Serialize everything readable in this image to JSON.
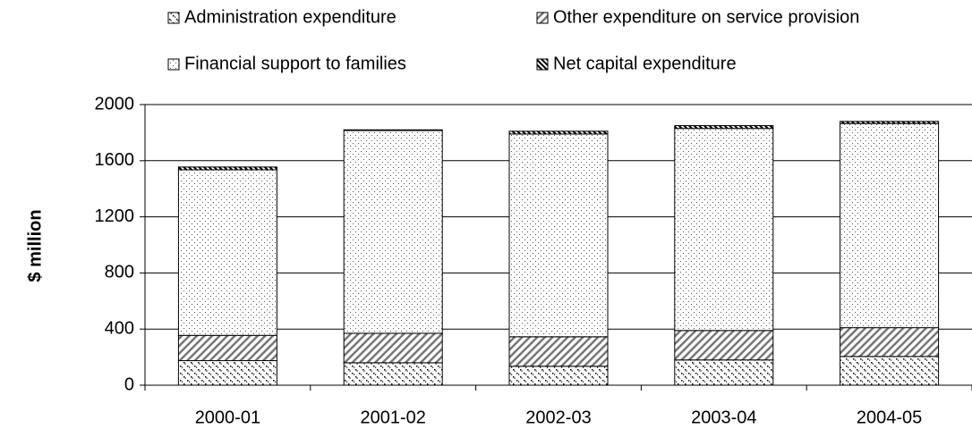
{
  "chart_data": {
    "type": "stacked-bar",
    "y_label": "$ million",
    "categories": [
      "2000-01",
      "2001-02",
      "2002-03",
      "2003-04",
      "2004-05"
    ],
    "series": [
      {
        "name": "Administration expenditure",
        "values": [
          175,
          160,
          135,
          180,
          205
        ]
      },
      {
        "name": "Other expenditure on service provision",
        "values": [
          180,
          210,
          210,
          210,
          205
        ]
      },
      {
        "name": "Financial support to families",
        "values": [
          1180,
          1445,
          1445,
          1440,
          1455
        ]
      },
      {
        "name": "Net capital expenditure",
        "values": [
          20,
          5,
          20,
          20,
          15
        ]
      }
    ],
    "ylim": [
      0,
      2000
    ],
    "yticks": [
      0,
      400,
      800,
      1200,
      1600,
      2000
    ],
    "grid": true
  }
}
